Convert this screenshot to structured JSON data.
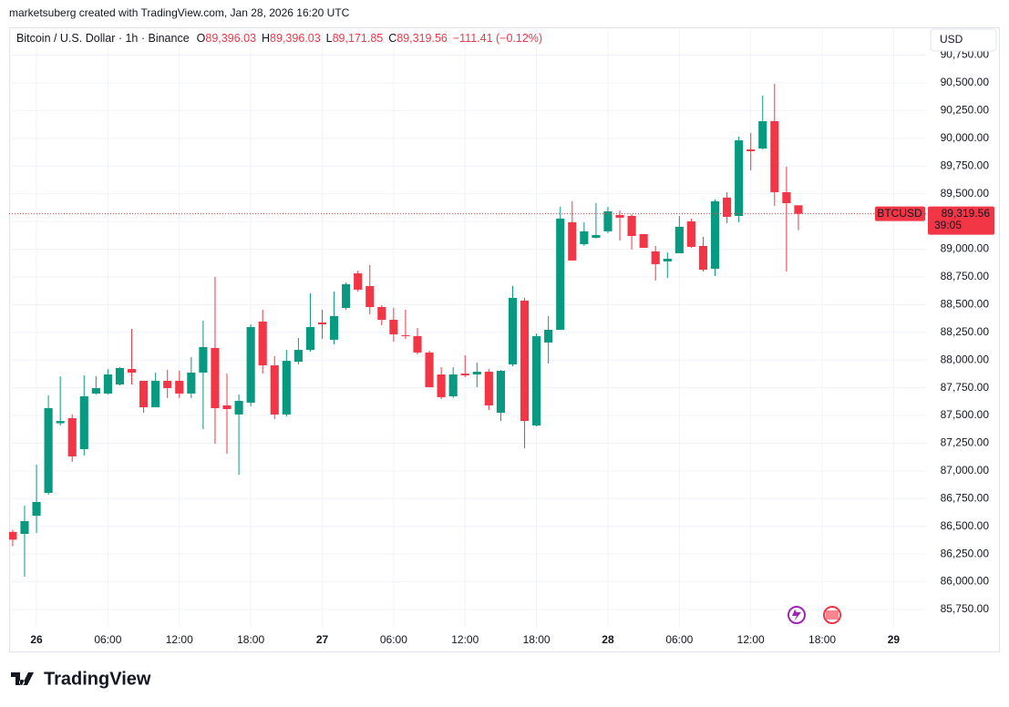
{
  "header": "marketsuberg created with TradingView.com, Jan 28, 2026 16:20 UTC",
  "logo": "TradingView",
  "currency": "USD",
  "chart_data": {
    "type": "candlestick",
    "symbol": "Bitcoin / U.S. Dollar · 1h · Binance",
    "ohlc_legend": [
      {
        "key": "O",
        "label": "89,396.03"
      },
      {
        "key": "H",
        "label": "89,396.03"
      },
      {
        "key": "L",
        "label": "89,171.85"
      },
      {
        "key": "C",
        "label": "89,319.56"
      }
    ],
    "change": "−111.41 (−0.12%)",
    "last_price": {
      "name": "BTCUSD",
      "label": "89,319.56",
      "countdown": "39:05"
    },
    "up_color": "#089981",
    "down_color": "#f23645",
    "grid": true,
    "x": [
      -2,
      -1,
      0,
      1,
      2,
      3,
      4,
      5,
      6,
      7,
      8,
      9,
      10,
      11,
      12,
      13,
      14,
      15,
      16,
      17,
      18,
      19,
      20,
      21,
      22,
      23,
      24,
      25,
      26,
      27,
      28,
      29,
      30,
      31,
      32,
      33,
      34,
      35,
      36,
      37,
      38,
      39,
      40,
      41,
      42,
      43,
      44,
      45,
      46,
      47,
      48,
      49,
      50,
      51,
      52,
      53,
      54,
      55,
      56,
      57,
      58,
      59,
      60,
      61,
      62,
      63,
      64
    ],
    "open": [
      86450,
      86432,
      86596,
      86802,
      87430,
      87476,
      87196,
      87698,
      87698,
      87780,
      87919,
      87813,
      87574,
      87813,
      87813,
      87698,
      87887,
      88109,
      87591,
      87509,
      87616,
      88347,
      87952,
      87509,
      87985,
      88092,
      88339,
      88183,
      88470,
      88782,
      88667,
      88478,
      88363,
      88224,
      88216,
      88068,
      87870,
      87673,
      87878,
      87870,
      87895,
      87525,
      87961,
      88536,
      87410,
      88158,
      88273,
      89243,
      89045,
      89103,
      89161,
      89308,
      89300,
      89136,
      88980,
      88889,
      88963,
      89251,
      89029,
      88824,
      89465,
      89300,
      89900,
      89908,
      90155,
      89514,
      89396.03
    ],
    "high": [
      86470,
      86687,
      87057,
      87681,
      87853,
      87509,
      87862,
      87854,
      87919,
      87936,
      88281,
      87813,
      87887,
      87912,
      87903,
      88027,
      88355,
      88750,
      87878,
      87690,
      88322,
      88454,
      88035,
      88092,
      88199,
      88602,
      88454,
      88618,
      88700,
      88806,
      88856,
      88495,
      88470,
      88454,
      88290,
      88084,
      87936,
      87936,
      88043,
      87978,
      87919,
      87911,
      88668,
      88561,
      88240,
      88396,
      89383,
      89432,
      89243,
      89416,
      89383,
      89349,
      89317,
      89136,
      89029,
      88971,
      89300,
      89276,
      89111,
      89448,
      89514,
      90015,
      90048,
      90385,
      90492,
      89744,
      89396.03
    ],
    "low": [
      86320,
      86046,
      86440,
      86785,
      87410,
      87082,
      87139,
      87690,
      87690,
      87772,
      87780,
      87525,
      87574,
      87657,
      87657,
      87657,
      87377,
      87246,
      87155,
      86966,
      87583,
      87878,
      87468,
      87492,
      87961,
      88076,
      88191,
      88141,
      88454,
      88618,
      88413,
      88314,
      88166,
      88191,
      88051,
      87755,
      87648,
      87657,
      87846,
      87755,
      87550,
      87451,
      87944,
      87205,
      87402,
      87969,
      88273,
      88898,
      89029,
      89095,
      89144,
      89078,
      88996,
      89012,
      88717,
      88741,
      88963,
      89012,
      88799,
      88758,
      89235,
      89243,
      89711,
      89900,
      89391,
      88799,
      89171.85
    ],
    "close": [
      86380,
      86547,
      86720,
      87566,
      87450,
      87131,
      87673,
      87747,
      87870,
      87928,
      87887,
      87574,
      87813,
      87747,
      87698,
      87887,
      88117,
      87566,
      87558,
      87632,
      88298,
      87952,
      87509,
      87993,
      88092,
      88298,
      88322,
      88396,
      88684,
      88635,
      88478,
      88363,
      88232,
      88216,
      88068,
      87755,
      87665,
      87870,
      87862,
      87895,
      87591,
      87903,
      88561,
      87451,
      88216,
      88273,
      89276,
      88898,
      89161,
      89128,
      89341,
      89284,
      89119,
      89012,
      88865,
      88914,
      89202,
      89021,
      88815,
      89432,
      89292,
      89982,
      89884,
      90155,
      89514,
      89415,
      89319.56
    ],
    "xlim": [
      -2.3,
      74.8
    ],
    "xticks": [
      {
        "value": 0,
        "label": "26"
      },
      {
        "value": 6,
        "label": "06:00"
      },
      {
        "value": 12,
        "label": "12:00"
      },
      {
        "value": 18,
        "label": "18:00"
      },
      {
        "value": 24,
        "label": "27"
      },
      {
        "value": 30,
        "label": "06:00"
      },
      {
        "value": 36,
        "label": "12:00"
      },
      {
        "value": 42,
        "label": "18:00"
      },
      {
        "value": 48,
        "label": "28"
      },
      {
        "value": 54,
        "label": "06:00"
      },
      {
        "value": 60,
        "label": "12:00"
      },
      {
        "value": 66,
        "label": "18:00"
      },
      {
        "value": 72,
        "label": "29"
      }
    ],
    "ylim": [
      85372,
      91001
    ],
    "yticks": [
      {
        "value": 85750,
        "label": "85,750.00"
      },
      {
        "value": 86000,
        "label": "86,000.00"
      },
      {
        "value": 86250,
        "label": "86,250.00"
      },
      {
        "value": 86500,
        "label": "86,500.00"
      },
      {
        "value": 86750,
        "label": "86,750.00"
      },
      {
        "value": 87000,
        "label": "87,000.00"
      },
      {
        "value": 87250,
        "label": "87,250.00"
      },
      {
        "value": 87500,
        "label": "87,500.00"
      },
      {
        "value": 87750,
        "label": "87,750.00"
      },
      {
        "value": 88000,
        "label": "88,000.00"
      },
      {
        "value": 88250,
        "label": "88,250.00"
      },
      {
        "value": 88500,
        "label": "88,500.00"
      },
      {
        "value": 88750,
        "label": "88,750.00"
      },
      {
        "value": 89000,
        "label": "89,000.00"
      },
      {
        "value": 89250,
        "label": "89,250.00"
      },
      {
        "value": 89500,
        "label": "89,500.00"
      },
      {
        "value": 89750,
        "label": "89,750.00"
      },
      {
        "value": 90000,
        "label": "90,000.00"
      },
      {
        "value": 90250,
        "label": "90,250.00"
      },
      {
        "value": 90500,
        "label": "90,500.00"
      },
      {
        "value": 90750,
        "label": "90,750.00"
      }
    ]
  }
}
